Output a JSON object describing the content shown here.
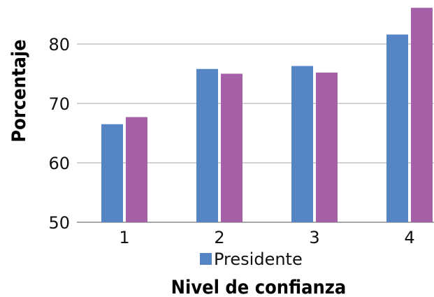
{
  "chart_data": {
    "type": "bar",
    "categories": [
      "1",
      "2",
      "3",
      "4"
    ],
    "series": [
      {
        "name": "Presidente",
        "color": "#5585c5",
        "values": [
          66.5,
          75.8,
          76.3,
          81.6
        ]
      },
      {
        "color": "#a560a7",
        "values": [
          67.7,
          75.0,
          75.2,
          86.1
        ]
      }
    ],
    "xlabel": "Nivel de confianza",
    "ylabel": "Porcentaje",
    "ylim": [
      50,
      86
    ],
    "yticks": [
      50,
      60,
      70,
      80
    ],
    "grid": true,
    "legend_placement": "bottom"
  }
}
